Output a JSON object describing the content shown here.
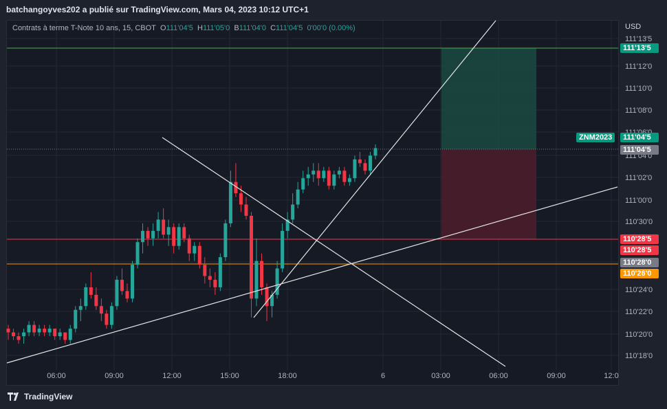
{
  "publisher_line": "batchangoyves202 a publié sur TradingView.com, Mars 04, 2023 10:12 UTC+1",
  "legend": {
    "instrument": "Contrats à terme T-Note 10 ans, 15, CBOT",
    "o_label": "O",
    "o_value": "111'04'5",
    "h_label": "H",
    "h_value": "111'05'0",
    "b_label": "B",
    "b_value": "111'04'0",
    "c_label": "C",
    "c_value": "111'04'5",
    "change": "0'00'0 (0.00%)"
  },
  "brand": "TradingView",
  "colors": {
    "up": "#26a69a",
    "down": "#f23645",
    "bg": "#161a25",
    "target_zone": "#1b4a42",
    "stop_zone": "#4d1f2b",
    "green_line": "#4caf50",
    "red_line": "#f23645",
    "orange_line": "#ff9800"
  },
  "chart_data": {
    "type": "candlestick",
    "y_unit": "USD",
    "y_ticks": [
      "111'13'5",
      "111'12'0",
      "111'10'0",
      "111'08'0",
      "111'06'0",
      "111'04'0",
      "111'02'0",
      "111'00'0",
      "110'30'0",
      "110'28'5",
      "110'28'0",
      "110'24'0",
      "110'22'0",
      "110'20'0",
      "110'18'0"
    ],
    "x_ticks": [
      "06:00",
      "09:00",
      "12:00",
      "15:00",
      "18:00",
      "6",
      "03:00",
      "06:00",
      "09:00",
      "12:0"
    ],
    "price_labels": [
      {
        "text": "111'13'5",
        "color": "#089981"
      },
      {
        "text": "ZNM2023",
        "color": "#089981"
      },
      {
        "text": "111'04'5",
        "color": "#089981"
      },
      {
        "text": "111'04'5",
        "color": "#787b86"
      },
      {
        "text": "110'28'5",
        "color": "#f23645"
      },
      {
        "text": "110'28'5",
        "color": "#f23645"
      },
      {
        "text": "110'28'0",
        "color": "#787b86"
      },
      {
        "text": "110'26'0",
        "color": "#ff9800"
      }
    ],
    "candles": [
      [
        110.64,
        110.65,
        110.61,
        110.63
      ],
      [
        110.63,
        110.64,
        110.61,
        110.62
      ],
      [
        110.62,
        110.63,
        110.6,
        110.61
      ],
      [
        110.62,
        110.64,
        110.6,
        110.63
      ],
      [
        110.63,
        110.66,
        110.62,
        110.65
      ],
      [
        110.65,
        110.66,
        110.62,
        110.63
      ],
      [
        110.63,
        110.65,
        110.62,
        110.64
      ],
      [
        110.64,
        110.65,
        110.62,
        110.63
      ],
      [
        110.63,
        110.65,
        110.62,
        110.64
      ],
      [
        110.64,
        110.64,
        110.61,
        110.62
      ],
      [
        110.62,
        110.64,
        110.61,
        110.63
      ],
      [
        110.63,
        110.63,
        110.6,
        110.61
      ],
      [
        110.61,
        110.65,
        110.6,
        110.64
      ],
      [
        110.64,
        110.7,
        110.63,
        110.69
      ],
      [
        110.69,
        110.72,
        110.66,
        110.7
      ],
      [
        110.7,
        110.76,
        110.69,
        110.75
      ],
      [
        110.75,
        110.79,
        110.72,
        110.73
      ],
      [
        110.73,
        110.75,
        110.69,
        110.7
      ],
      [
        110.7,
        110.72,
        110.66,
        110.68
      ],
      [
        110.68,
        110.69,
        110.64,
        110.65
      ],
      [
        110.65,
        110.71,
        110.64,
        110.7
      ],
      [
        110.7,
        110.78,
        110.69,
        110.77
      ],
      [
        110.77,
        110.8,
        110.73,
        110.74
      ],
      [
        110.74,
        110.76,
        110.71,
        110.72
      ],
      [
        110.72,
        110.82,
        110.71,
        110.81
      ],
      [
        110.81,
        110.88,
        110.8,
        110.87
      ],
      [
        110.87,
        110.92,
        110.84,
        110.9
      ],
      [
        110.9,
        110.91,
        110.86,
        110.88
      ],
      [
        110.88,
        110.92,
        110.86,
        110.9
      ],
      [
        110.9,
        110.95,
        110.88,
        110.93
      ],
      [
        110.93,
        110.96,
        110.88,
        110.89
      ],
      [
        110.89,
        110.93,
        110.86,
        110.91
      ],
      [
        110.91,
        110.92,
        110.84,
        110.86
      ],
      [
        110.86,
        110.92,
        110.85,
        110.91
      ],
      [
        110.91,
        110.92,
        110.87,
        110.88
      ],
      [
        110.88,
        110.89,
        110.82,
        110.84
      ],
      [
        110.84,
        110.87,
        110.82,
        110.86
      ],
      [
        110.86,
        110.87,
        110.8,
        110.81
      ],
      [
        110.81,
        110.83,
        110.76,
        110.78
      ],
      [
        110.78,
        110.8,
        110.75,
        110.77
      ],
      [
        110.77,
        110.79,
        110.73,
        110.75
      ],
      [
        110.75,
        110.84,
        110.74,
        110.83
      ],
      [
        110.83,
        110.93,
        110.82,
        110.92
      ],
      [
        110.92,
        111.06,
        110.91,
        111.03
      ],
      [
        111.03,
        111.08,
        110.99,
        111.0
      ],
      [
        111.0,
        111.02,
        110.95,
        110.97
      ],
      [
        110.97,
        110.99,
        110.93,
        110.94
      ],
      [
        110.94,
        110.95,
        110.67,
        110.72
      ],
      [
        110.72,
        110.88,
        110.7,
        110.82
      ],
      [
        110.82,
        110.84,
        110.73,
        110.75
      ],
      [
        110.75,
        110.76,
        110.66,
        110.7
      ],
      [
        110.7,
        110.74,
        110.67,
        110.73
      ],
      [
        110.73,
        110.82,
        110.72,
        110.8
      ],
      [
        110.8,
        110.92,
        110.79,
        110.9
      ],
      [
        110.9,
        110.95,
        110.88,
        110.93
      ],
      [
        110.93,
        111.0,
        110.92,
        110.97
      ],
      [
        110.97,
        111.03,
        110.96,
        111.01
      ],
      [
        111.01,
        111.06,
        111.0,
        111.04
      ],
      [
        111.04,
        111.07,
        111.02,
        111.05
      ],
      [
        111.05,
        111.08,
        111.03,
        111.06
      ],
      [
        111.06,
        111.08,
        111.02,
        111.04
      ],
      [
        111.04,
        111.07,
        111.03,
        111.06
      ],
      [
        111.06,
        111.07,
        111.01,
        111.02
      ],
      [
        111.02,
        111.06,
        111.01,
        111.05
      ],
      [
        111.05,
        111.07,
        111.04,
        111.06
      ],
      [
        111.06,
        111.07,
        111.02,
        111.03
      ],
      [
        111.03,
        111.05,
        111.02,
        111.04
      ],
      [
        111.04,
        111.1,
        111.03,
        111.09
      ],
      [
        111.09,
        111.11,
        111.07,
        111.08
      ],
      [
        111.08,
        111.09,
        111.05,
        111.06
      ],
      [
        111.06,
        111.11,
        111.05,
        111.1
      ],
      [
        111.1,
        111.13,
        111.09,
        111.12
      ]
    ]
  }
}
